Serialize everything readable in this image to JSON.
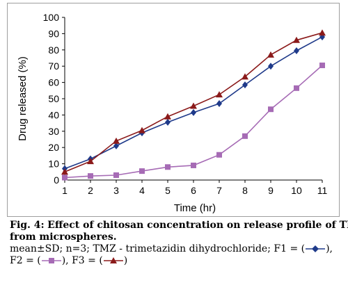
{
  "chart_data": {
    "type": "line",
    "xlabel": "Time (hr)",
    "ylabel": "Drug released (%)",
    "x": [
      1,
      2,
      3,
      4,
      5,
      6,
      7,
      8,
      9,
      10,
      11
    ],
    "xlim": [
      1,
      11
    ],
    "ylim": [
      0,
      100
    ],
    "x_ticks": [
      "1",
      "2",
      "3",
      "4",
      "5",
      "6",
      "7",
      "8",
      "9",
      "10",
      "11"
    ],
    "y_ticks": [
      "0",
      "10",
      "20",
      "30",
      "40",
      "50",
      "60",
      "70",
      "80",
      "90",
      "100"
    ],
    "grid": false,
    "legend": "none",
    "series": [
      {
        "name": "F1",
        "color": "#1f3a8a",
        "marker": "diamond",
        "values": [
          7,
          13,
          21,
          29,
          35.5,
          41.5,
          47,
          58.5,
          70,
          79.5,
          88
        ]
      },
      {
        "name": "F2",
        "color": "#a66bb5",
        "marker": "square",
        "values": [
          1.5,
          2.5,
          3,
          5.5,
          8,
          9,
          15.5,
          27,
          43.5,
          56.5,
          70.5
        ]
      },
      {
        "name": "F3",
        "color": "#8b1a1a",
        "marker": "triangle",
        "values": [
          5,
          11.5,
          24,
          30.5,
          39,
          45.5,
          52.5,
          63.5,
          77,
          86,
          90.5
        ]
      }
    ]
  },
  "caption": {
    "fig_label": "Fig. 4:",
    "title_line1": "Effect of chitosan concentration on release profile of TMZ",
    "title_line2": "from microspheres.",
    "note_line1": "mean±SD; n=3; TMZ - trimetazidin dihydrochloride; F1 = (",
    "note_line1_end": "),",
    "note_f2": "F2 = (",
    "note_mid": "), F3 = (",
    "note_end": ")"
  }
}
